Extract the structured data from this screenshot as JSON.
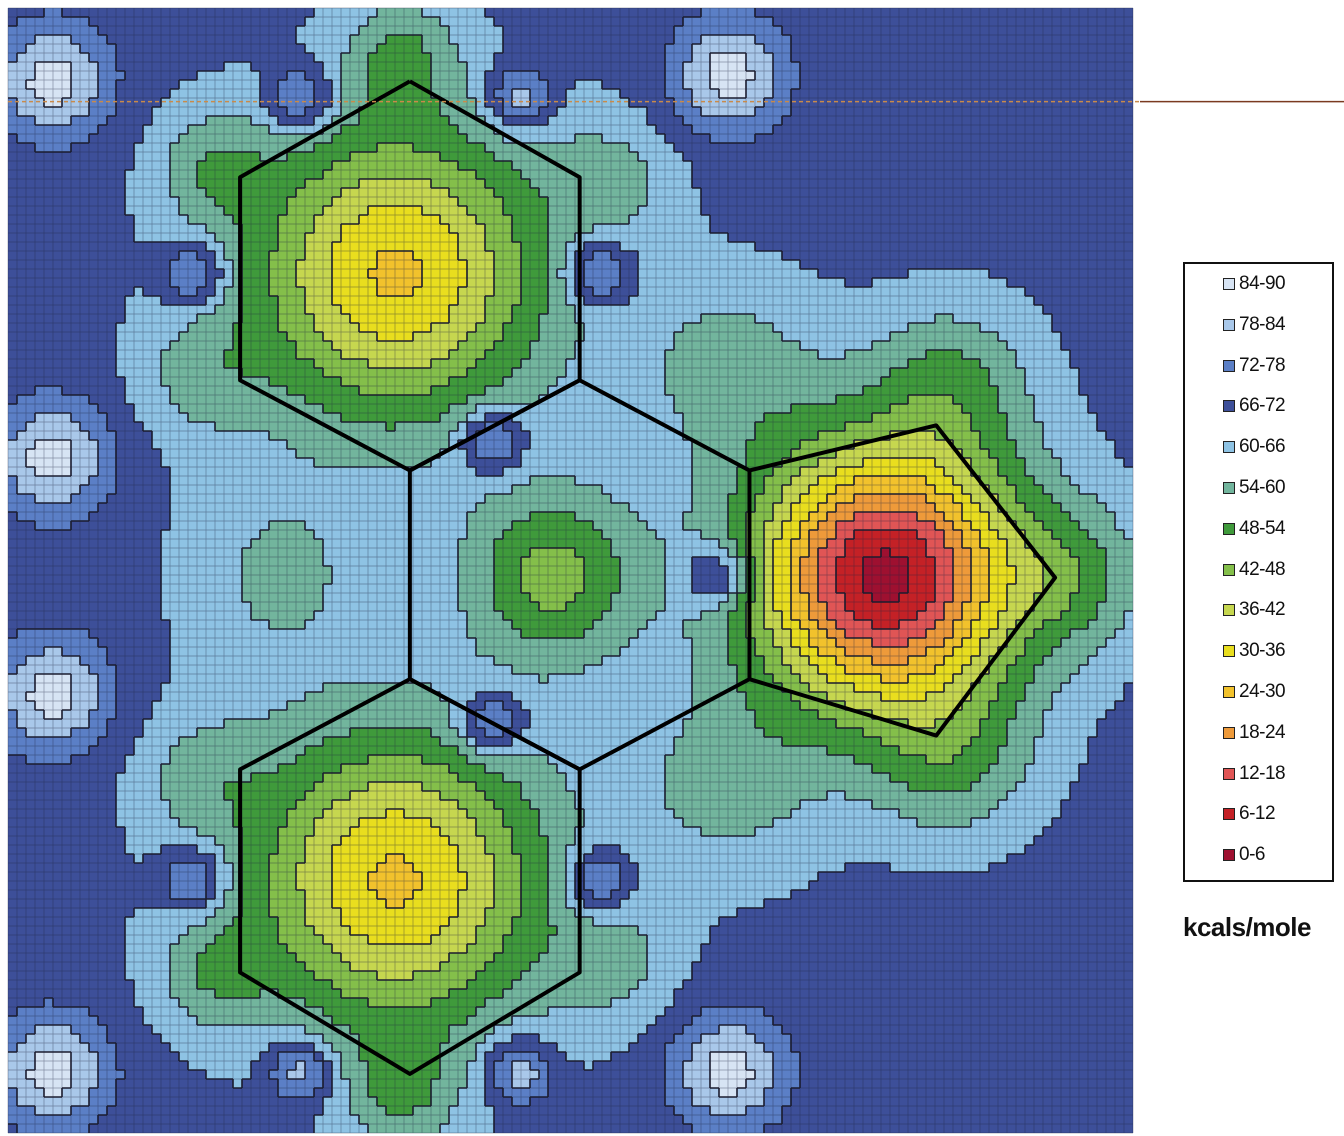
{
  "chart_data": {
    "type": "heatmap",
    "title": "",
    "units_label": "kcals/mole",
    "colorscale": [
      {
        "label": "84-90",
        "min": 84,
        "max": 90,
        "color": "#d7e4f4"
      },
      {
        "label": "78-84",
        "min": 78,
        "max": 84,
        "color": "#a9c8ea"
      },
      {
        "label": "72-78",
        "min": 72,
        "max": 78,
        "color": "#5b7fc6"
      },
      {
        "label": "66-72",
        "min": 66,
        "max": 72,
        "color": "#3d4f99"
      },
      {
        "label": "60-66",
        "min": 60,
        "max": 66,
        "color": "#8ec3e4"
      },
      {
        "label": "54-60",
        "min": 54,
        "max": 60,
        "color": "#72b59d"
      },
      {
        "label": "48-54",
        "min": 48,
        "max": 54,
        "color": "#3f9a3b"
      },
      {
        "label": "42-48",
        "min": 42,
        "max": 48,
        "color": "#84bf4a"
      },
      {
        "label": "36-42",
        "min": 36,
        "max": 42,
        "color": "#c6d74f"
      },
      {
        "label": "30-36",
        "min": 30,
        "max": 36,
        "color": "#e9de1e"
      },
      {
        "label": "24-30",
        "min": 24,
        "max": 30,
        "color": "#f2c22c"
      },
      {
        "label": "18-24",
        "min": 18,
        "max": 24,
        "color": "#ee9a3a"
      },
      {
        "label": "12-18",
        "min": 12,
        "max": 18,
        "color": "#e05555"
      },
      {
        "label": "6-12",
        "min": 6,
        "max": 12,
        "color": "#c42126"
      },
      {
        "label": "0-6",
        "min": 0,
        "max": 6,
        "color": "#9e1030"
      }
    ],
    "background_value": 68,
    "features": [
      {
        "kind": "well",
        "x": 0.345,
        "y": 0.235,
        "depth": 39,
        "sigma": 0.095
      },
      {
        "kind": "well",
        "x": 0.345,
        "y": 0.775,
        "depth": 39,
        "sigma": 0.095
      },
      {
        "kind": "well",
        "x": 0.78,
        "y": 0.505,
        "depth": 64,
        "sigma": 0.085
      },
      {
        "kind": "well",
        "x": 0.485,
        "y": 0.505,
        "depth": 22,
        "sigma": 0.055
      },
      {
        "kind": "well",
        "x": 0.64,
        "y": 0.32,
        "depth": 10,
        "sigma": 0.06
      },
      {
        "kind": "well",
        "x": 0.64,
        "y": 0.69,
        "depth": 10,
        "sigma": 0.06
      },
      {
        "kind": "well",
        "x": 0.84,
        "y": 0.33,
        "depth": 12,
        "sigma": 0.05
      },
      {
        "kind": "well",
        "x": 0.84,
        "y": 0.67,
        "depth": 12,
        "sigma": 0.05
      },
      {
        "kind": "well",
        "x": 0.95,
        "y": 0.505,
        "depth": 12,
        "sigma": 0.045
      },
      {
        "kind": "well",
        "x": 0.24,
        "y": 0.505,
        "depth": 9,
        "sigma": 0.06
      },
      {
        "kind": "well",
        "x": 0.35,
        "y": 0.04,
        "depth": 12,
        "sigma": 0.035
      },
      {
        "kind": "well",
        "x": 0.35,
        "y": 0.965,
        "depth": 12,
        "sigma": 0.035
      },
      {
        "kind": "well",
        "x": 0.18,
        "y": 0.14,
        "depth": 10,
        "sigma": 0.035
      },
      {
        "kind": "well",
        "x": 0.18,
        "y": 0.86,
        "depth": 10,
        "sigma": 0.035
      },
      {
        "kind": "well",
        "x": 0.54,
        "y": 0.15,
        "depth": 8,
        "sigma": 0.04
      },
      {
        "kind": "well",
        "x": 0.54,
        "y": 0.85,
        "depth": 8,
        "sigma": 0.04
      },
      {
        "kind": "well",
        "x": 0.17,
        "y": 0.33,
        "depth": 8,
        "sigma": 0.04
      },
      {
        "kind": "well",
        "x": 0.17,
        "y": 0.68,
        "depth": 8,
        "sigma": 0.04
      },
      {
        "kind": "peak",
        "x": 0.04,
        "y": 0.065,
        "height": 19,
        "sigma": 0.035
      },
      {
        "kind": "peak",
        "x": 0.64,
        "y": 0.06,
        "height": 19,
        "sigma": 0.035
      },
      {
        "kind": "peak",
        "x": 0.04,
        "y": 0.4,
        "height": 19,
        "sigma": 0.035
      },
      {
        "kind": "peak",
        "x": 0.04,
        "y": 0.61,
        "height": 19,
        "sigma": 0.035
      },
      {
        "kind": "peak",
        "x": 0.04,
        "y": 0.945,
        "height": 19,
        "sigma": 0.035
      },
      {
        "kind": "peak",
        "x": 0.64,
        "y": 0.945,
        "height": 19,
        "sigma": 0.035
      },
      {
        "kind": "peak",
        "x": 0.43,
        "y": 0.385,
        "height": 18,
        "sigma": 0.02
      },
      {
        "kind": "peak",
        "x": 0.43,
        "y": 0.635,
        "height": 18,
        "sigma": 0.02
      },
      {
        "kind": "peak",
        "x": 0.63,
        "y": 0.505,
        "height": 17,
        "sigma": 0.02
      },
      {
        "kind": "peak",
        "x": 0.165,
        "y": 0.235,
        "height": 17,
        "sigma": 0.02
      },
      {
        "kind": "peak",
        "x": 0.165,
        "y": 0.775,
        "height": 17,
        "sigma": 0.02
      },
      {
        "kind": "peak",
        "x": 0.525,
        "y": 0.235,
        "height": 17,
        "sigma": 0.02
      },
      {
        "kind": "peak",
        "x": 0.525,
        "y": 0.775,
        "height": 17,
        "sigma": 0.02
      },
      {
        "kind": "peak",
        "x": 0.26,
        "y": 0.08,
        "height": 17,
        "sigma": 0.02
      },
      {
        "kind": "peak",
        "x": 0.26,
        "y": 0.945,
        "height": 17,
        "sigma": 0.02
      },
      {
        "kind": "peak",
        "x": 0.455,
        "y": 0.945,
        "height": 17,
        "sigma": 0.02
      },
      {
        "kind": "peak",
        "x": 0.455,
        "y": 0.08,
        "height": 17,
        "sigma": 0.02
      }
    ],
    "molecule_outline": [
      [
        [
          0.355,
          0.065
        ],
        [
          0.505,
          0.15
        ],
        [
          0.505,
          0.33
        ],
        [
          0.355,
          0.41
        ],
        [
          0.205,
          0.33
        ],
        [
          0.205,
          0.15
        ],
        [
          0.355,
          0.065
        ]
      ],
      [
        [
          0.355,
          0.41
        ],
        [
          0.505,
          0.33
        ],
        [
          0.655,
          0.41
        ],
        [
          0.655,
          0.595
        ],
        [
          0.505,
          0.675
        ],
        [
          0.355,
          0.595
        ],
        [
          0.355,
          0.41
        ]
      ],
      [
        [
          0.355,
          0.595
        ],
        [
          0.505,
          0.675
        ],
        [
          0.505,
          0.855
        ],
        [
          0.355,
          0.945
        ],
        [
          0.205,
          0.855
        ],
        [
          0.205,
          0.675
        ],
        [
          0.355,
          0.595
        ]
      ],
      [
        [
          0.655,
          0.41
        ],
        [
          0.82,
          0.37
        ],
        [
          0.925,
          0.505
        ],
        [
          0.82,
          0.645
        ],
        [
          0.655,
          0.595
        ]
      ]
    ],
    "reference_line": {
      "y": 0.083,
      "x0": 0.0,
      "x1": 0.962
    }
  }
}
